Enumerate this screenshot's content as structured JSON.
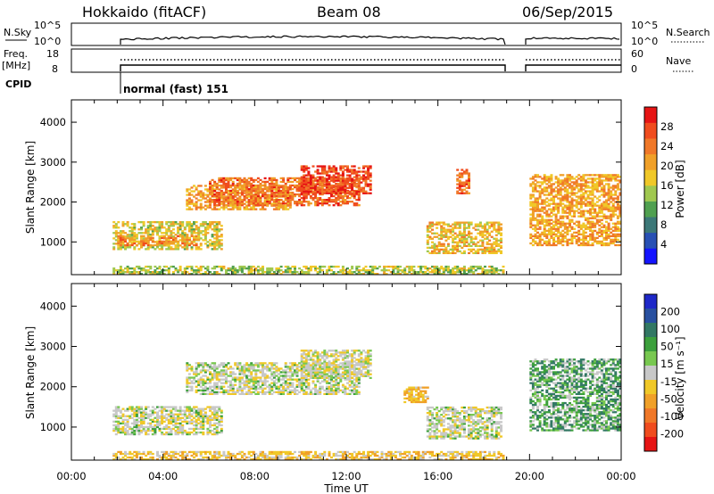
{
  "header": {
    "station": "Hokkaido (fitACF)",
    "beam": "Beam 08",
    "date": "06/Sep/2015"
  },
  "top_panel": {
    "left_label": "N.Sky",
    "right_label": "N.Search",
    "left_ticks": [
      "10^5",
      "10^0"
    ],
    "right_ticks": [
      "10^5",
      "10^0"
    ]
  },
  "freq_panel": {
    "left_label_1": "Freq.",
    "left_label_2": "[MHz]",
    "right_label": "Nave",
    "left_ticks": [
      "18",
      "8"
    ],
    "right_ticks": [
      "60",
      "0"
    ]
  },
  "cpid": {
    "label": "CPID",
    "mode_text": "normal (fast) 151"
  },
  "chart_data": [
    {
      "type": "heatmap",
      "name": "power",
      "ylabel": "Slant Range [km]",
      "ylim": [
        180,
        4560
      ],
      "y_ticks": [
        1000,
        2000,
        3000,
        4000
      ],
      "xlabel": "Time UT",
      "x_ticks": [
        "00:00",
        "04:00",
        "08:00",
        "12:00",
        "16:00",
        "20:00",
        "00:00"
      ],
      "x_range_hours": [
        0,
        24
      ],
      "colorbar_label": "Power [dB]",
      "colorbar_ticks": [
        "4",
        "8",
        "12",
        "16",
        "20",
        "24",
        "28"
      ],
      "colorbar_colors": [
        "#1414ff",
        "#2850b4",
        "#3c7878",
        "#50a050",
        "#a0c850",
        "#f0c828",
        "#f0a028",
        "#f07828",
        "#f04c1e",
        "#e61414"
      ],
      "data_gaps_hours": [
        [
          0,
          1.8
        ],
        [
          18.9,
          19.9
        ]
      ],
      "echo_regions": [
        {
          "t0": 1.8,
          "t1": 6.5,
          "r0": 800,
          "r1": 1500,
          "value_db": 16
        },
        {
          "t0": 2.0,
          "t1": 5.5,
          "r0": 900,
          "r1": 1150,
          "value_db": 22
        },
        {
          "t0": 5.0,
          "t1": 9.5,
          "r0": 1800,
          "r1": 2400,
          "value_db": 20
        },
        {
          "t0": 6.0,
          "t1": 12.5,
          "r0": 1900,
          "r1": 2600,
          "value_db": 24
        },
        {
          "t0": 10.0,
          "t1": 13.0,
          "r0": 2200,
          "r1": 2900,
          "value_db": 27
        },
        {
          "t0": 15.5,
          "t1": 18.8,
          "r0": 700,
          "r1": 1500,
          "value_db": 18
        },
        {
          "t0": 16.8,
          "t1": 17.4,
          "r0": 2200,
          "r1": 2800,
          "value_db": 24
        },
        {
          "t0": 20.0,
          "t1": 24.0,
          "r0": 900,
          "r1": 2700,
          "value_db": 20
        },
        {
          "t0": 1.8,
          "t1": 18.8,
          "r0": 180,
          "r1": 400,
          "value_db": 14
        }
      ]
    },
    {
      "type": "heatmap",
      "name": "velocity",
      "ylabel": "Slant Range [km]",
      "ylim": [
        180,
        4560
      ],
      "y_ticks": [
        1000,
        2000,
        3000,
        4000
      ],
      "xlabel": "Time UT",
      "x_ticks": [
        "00:00",
        "04:00",
        "08:00",
        "12:00",
        "16:00",
        "20:00",
        "00:00"
      ],
      "x_range_hours": [
        0,
        24
      ],
      "colorbar_label": "Velocity [m s⁻¹]",
      "colorbar_ticks": [
        "200",
        "100",
        "50",
        "15",
        "-15",
        "-50",
        "-100",
        "-200"
      ],
      "colorbar_colors": [
        "#1e28c8",
        "#2850a0",
        "#327864",
        "#3ca03c",
        "#78c850",
        "#c8c8c8",
        "#f0c828",
        "#f0a028",
        "#f07828",
        "#f04c1e",
        "#e61414"
      ],
      "data_gaps_hours": [
        [
          0,
          1.8
        ],
        [
          18.9,
          19.9
        ]
      ],
      "echo_regions": [
        {
          "t0": 1.8,
          "t1": 6.5,
          "r0": 800,
          "r1": 1500,
          "value_ms": 0
        },
        {
          "t0": 5.0,
          "t1": 12.5,
          "r0": 1800,
          "r1": 2600,
          "value_ms": 0
        },
        {
          "t0": 10.0,
          "t1": 13.0,
          "r0": 2200,
          "r1": 2900,
          "value_ms": -5
        },
        {
          "t0": 15.5,
          "t1": 18.8,
          "r0": 700,
          "r1": 1500,
          "value_ms": 0
        },
        {
          "t0": 20.0,
          "t1": 24.0,
          "r0": 900,
          "r1": 2700,
          "value_ms": 30
        },
        {
          "t0": 14.5,
          "t1": 15.5,
          "r0": 1600,
          "r1": 2000,
          "value_ms": -40
        },
        {
          "t0": 1.8,
          "t1": 18.8,
          "r0": 180,
          "r1": 400,
          "value_ms": -30
        }
      ]
    }
  ]
}
